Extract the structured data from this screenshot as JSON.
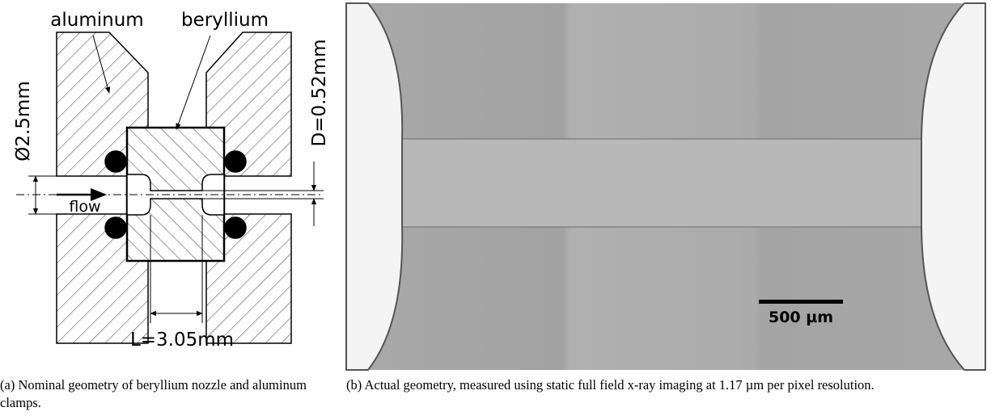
{
  "figure": {
    "panel_a": {
      "labels": {
        "aluminum": "aluminum",
        "beryllium": "beryllium",
        "diameter": "Ø2.5mm",
        "bore": "D=0.52mm",
        "flow": "flow",
        "length": "L=3.05mm"
      },
      "caption": "(a) Nominal geometry of beryllium nozzle and aluminum clamps."
    },
    "panel_b": {
      "scale_bar": "500 µm",
      "caption": "(b) Actual geometry, measured using static full field x-ray imaging at 1.17 µm per pixel resolution."
    }
  }
}
